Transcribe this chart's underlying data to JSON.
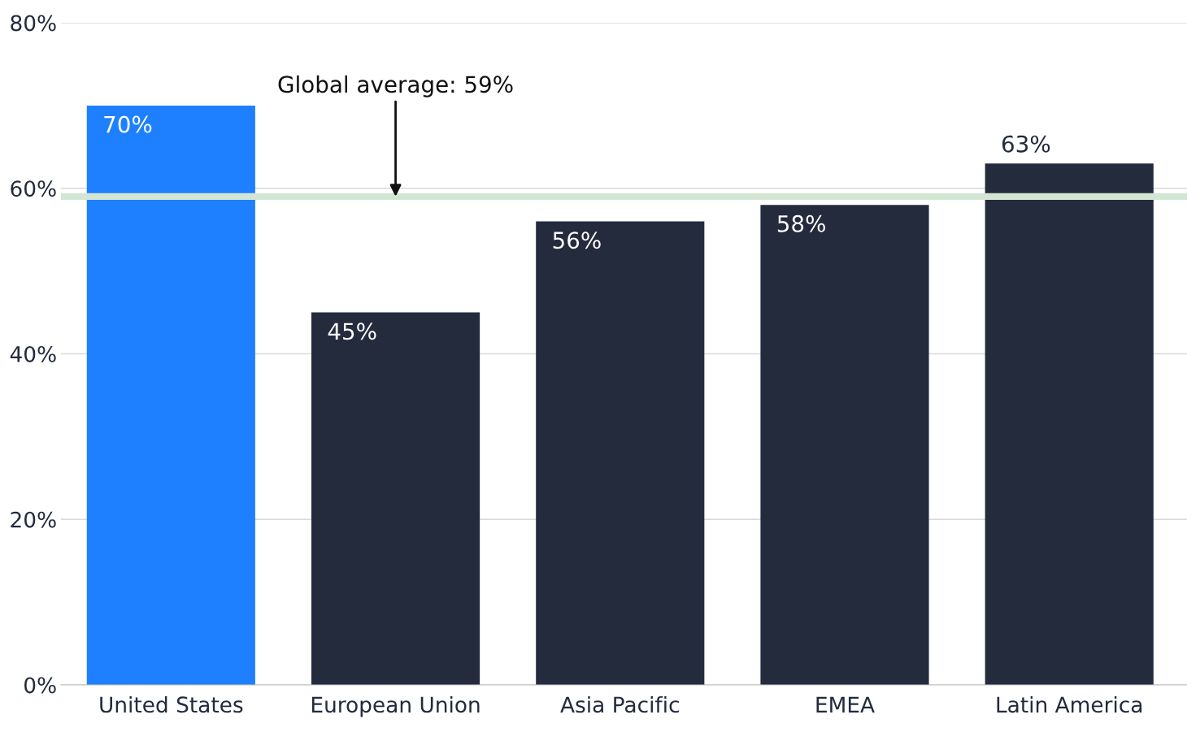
{
  "chart_data": {
    "type": "bar",
    "categories": [
      "United States",
      "European Union",
      "Asia Pacific",
      "EMEA",
      "Latin America"
    ],
    "values": [
      70,
      45,
      56,
      58,
      63
    ],
    "colors": [
      "#1f80ff",
      "#232b3d",
      "#232b3d",
      "#232b3d",
      "#232b3d"
    ],
    "ylim": [
      0,
      80
    ],
    "yticks": [
      {
        "value": 0,
        "label": "0%"
      },
      {
        "value": 20,
        "label": "20%"
      },
      {
        "value": 40,
        "label": "40%"
      },
      {
        "value": 60,
        "label": "60%"
      },
      {
        "value": 80,
        "label": "80%"
      }
    ],
    "ref_lines": [
      {
        "axis": "y",
        "value": 59,
        "label": "Global average: 59%",
        "color": "#d3e6d3"
      }
    ],
    "value_labels": [
      "70%",
      "45%",
      "56%",
      "58%",
      "63%"
    ],
    "grid": "y",
    "legend": false
  }
}
